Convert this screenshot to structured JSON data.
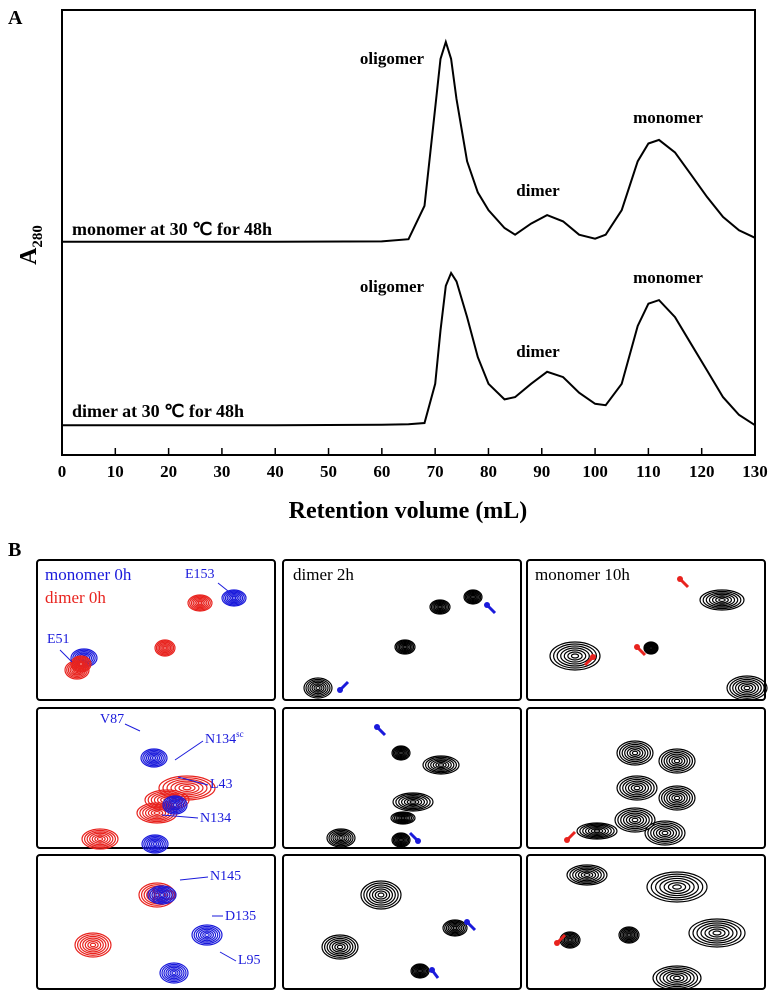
{
  "panel_labels": [
    "A",
    "B"
  ],
  "chart_data": {
    "type": "line",
    "ylabel": "A",
    "ylabel_sub": "280",
    "xlabel": "Retention volume (mL)",
    "x": [
      0,
      40,
      60,
      65,
      68,
      70,
      71,
      72,
      73,
      74,
      76,
      78,
      80,
      83,
      85,
      88,
      91,
      94,
      97,
      100,
      102,
      105,
      108,
      110,
      112,
      115,
      118,
      121,
      124,
      127,
      130
    ],
    "series": [
      {
        "name": "monomer at 30 ℃ for 48h",
        "color": "#000000",
        "values": [
          4.79,
          4.79,
          4.8,
          4.85,
          5.6,
          7.8,
          8.9,
          9.28,
          8.9,
          8.0,
          6.6,
          5.9,
          5.5,
          5.1,
          4.95,
          5.2,
          5.39,
          5.25,
          4.95,
          4.86,
          4.95,
          5.5,
          6.6,
          7.0,
          7.08,
          6.8,
          6.3,
          5.8,
          5.35,
          5.05,
          4.88
        ]
      },
      {
        "name": "dimer at 30 ℃ for 48h",
        "color": "#000000",
        "values": [
          0.67,
          0.67,
          0.68,
          0.69,
          0.72,
          1.6,
          2.8,
          3.8,
          4.09,
          3.9,
          3.1,
          2.2,
          1.6,
          1.25,
          1.3,
          1.6,
          1.87,
          1.75,
          1.4,
          1.15,
          1.12,
          1.6,
          2.9,
          3.4,
          3.48,
          3.1,
          2.5,
          1.9,
          1.3,
          0.9,
          0.67
        ]
      }
    ],
    "annotations": [
      "oligomer",
      "dimer",
      "monomer",
      "oligomer",
      "dimer",
      "monomer"
    ],
    "xlim": [
      0,
      130
    ],
    "ylim": [
      0,
      10
    ],
    "xticks": [
      0,
      10,
      20,
      30,
      40,
      50,
      60,
      70,
      80,
      90,
      100,
      110,
      120,
      130
    ]
  },
  "panel_b": {
    "legend": [
      {
        "text": "monomer 0h",
        "color": "#1a1adb"
      },
      {
        "text": "dimer 0h",
        "color": "#e8231e"
      }
    ],
    "titles": [
      "dimer  2h",
      "monomer 10h"
    ],
    "peaks": [
      {
        "text": "E153"
      },
      {
        "text": "E51"
      },
      {
        "text": "V87"
      },
      {
        "text": "N134",
        "sup": "sc"
      },
      {
        "text": "L43"
      },
      {
        "text": "N134"
      },
      {
        "text": "N145"
      },
      {
        "text": "D135"
      },
      {
        "text": "L95"
      }
    ]
  }
}
